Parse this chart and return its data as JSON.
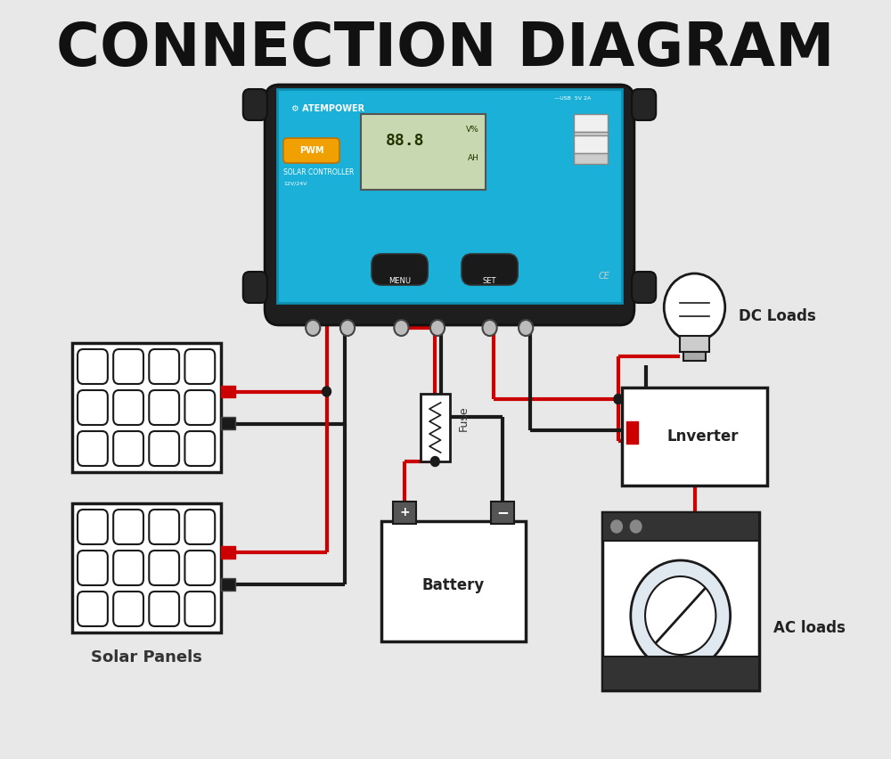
{
  "title": "CONNECTION DIAGRAM",
  "title_fontsize": 48,
  "title_fontweight": "black",
  "background_color": "#e8e8e8",
  "controller_color": "#1ab0d8",
  "controller_dark": "#2a2a2a",
  "wire_red": "#cc0000",
  "wire_black": "#1a1a1a",
  "label_solar": "Solar Panels",
  "label_battery": "Battery",
  "label_inverter": "Lnverter",
  "label_dc": "DC Loads",
  "label_ac": "AC loads",
  "label_fuse": "Fuse"
}
